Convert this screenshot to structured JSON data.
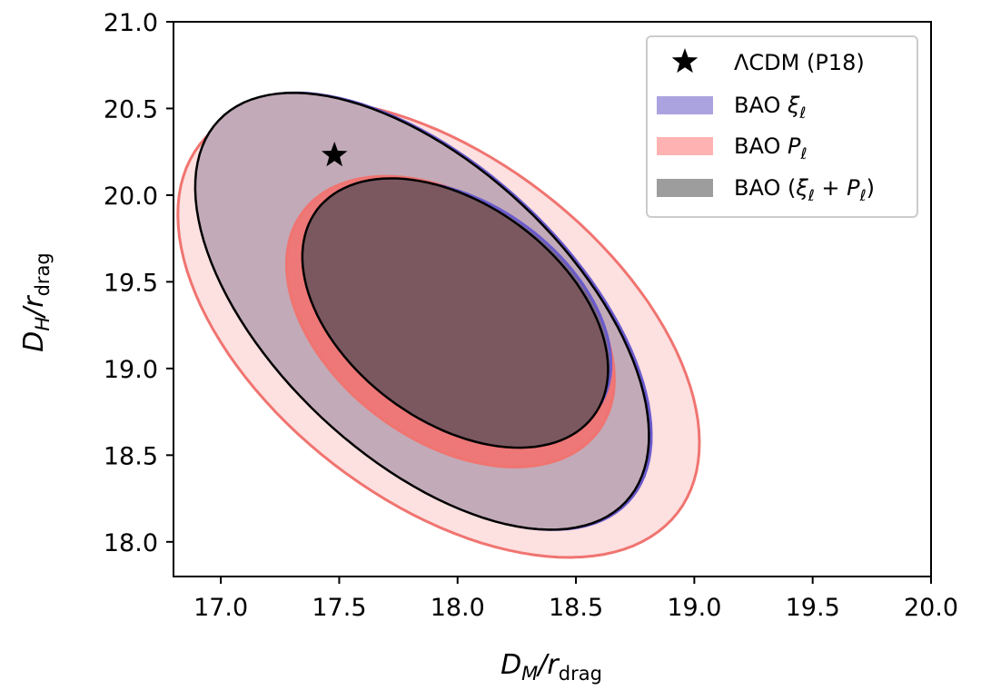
{
  "chart_data": {
    "type": "contour",
    "x_axis": {
      "label_main": "D",
      "label_sub": "M",
      "label_rest": "/r",
      "label_rest_sub": "drag",
      "range": [
        16.8,
        20.0
      ],
      "ticks": [
        "17.0",
        "17.5",
        "18.0",
        "18.5",
        "19.0",
        "19.5",
        "20.0"
      ]
    },
    "y_axis": {
      "label_main": "D",
      "label_sub": "H",
      "label_rest": "/r",
      "label_rest_sub": "drag",
      "range": [
        17.8,
        21.0
      ],
      "ticks": [
        "18.0",
        "18.5",
        "19.0",
        "19.5",
        "20.0",
        "20.5",
        "21.0"
      ]
    },
    "grid": false,
    "legend_position": "top-right",
    "series": [
      {
        "key": "xi",
        "label_parts": [
          "BAO ",
          "ξ",
          "ℓ",
          ""
        ],
        "fill_inner": "#7b6a8c",
        "fill_outer": "#c2aab8",
        "edge": "#6a5acd",
        "legend_color": "#aba3e0",
        "ellipses": [
          {
            "level": "1sigma",
            "cx": 18.02,
            "cy": 19.33,
            "semi_major": 0.83,
            "semi_minor": 0.52,
            "angle_deg": -57
          },
          {
            "level": "2sigma",
            "cx": 17.86,
            "cy": 19.33,
            "semi_major": 1.42,
            "semi_minor": 0.7,
            "angle_deg": -58
          }
        ]
      },
      {
        "key": "p",
        "label_parts": [
          "BAO ",
          "P",
          "ℓ",
          ""
        ],
        "fill_inner": "#ee7777",
        "fill_outer": "#fde0e0",
        "edge": "#f07470",
        "legend_color": "#feb3b2",
        "ellipses": [
          {
            "level": "1sigma",
            "cx": 17.97,
            "cy": 19.27,
            "semi_major": 0.92,
            "semi_minor": 0.58,
            "angle_deg": -58
          },
          {
            "level": "2sigma",
            "cx": 17.92,
            "cy": 19.23,
            "semi_major": 1.5,
            "semi_minor": 0.84,
            "angle_deg": -55
          }
        ]
      },
      {
        "key": "combined",
        "label_parts": [
          "BAO (",
          "ξ",
          "ℓ",
          " + P",
          "ℓ",
          ")"
        ],
        "fill_inner": "#7b5860",
        "fill_outer": "#c2aab8",
        "edge": "#000000",
        "legend_color": "#9d9d9d",
        "ellipses": [
          {
            "level": "1sigma",
            "cx": 17.99,
            "cy": 19.32,
            "semi_major": 0.86,
            "semi_minor": 0.53,
            "angle_deg": -57
          },
          {
            "level": "2sigma",
            "cx": 17.85,
            "cy": 19.33,
            "semi_major": 1.42,
            "semi_minor": 0.7,
            "angle_deg": -58
          }
        ]
      }
    ],
    "markers": [
      {
        "key": "lcdm",
        "label": "ΛCDM (P18)",
        "symbol": "star",
        "x": 17.48,
        "y": 20.23,
        "color": "#000000"
      }
    ]
  }
}
